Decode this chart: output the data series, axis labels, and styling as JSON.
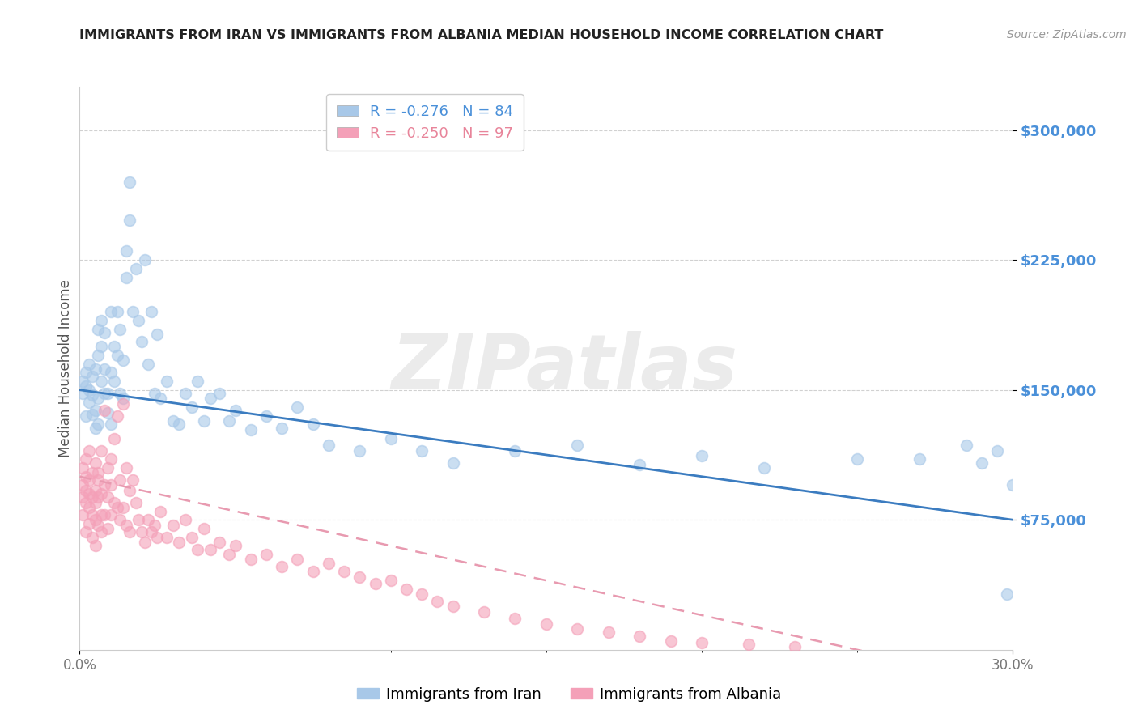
{
  "title": "IMMIGRANTS FROM IRAN VS IMMIGRANTS FROM ALBANIA MEDIAN HOUSEHOLD INCOME CORRELATION CHART",
  "source": "Source: ZipAtlas.com",
  "ylabel": "Median Household Income",
  "yticks": [
    75000,
    150000,
    225000,
    300000
  ],
  "ytick_labels": [
    "$75,000",
    "$150,000",
    "$225,000",
    "$300,000"
  ],
  "xlim": [
    0.0,
    0.3
  ],
  "ylim": [
    0,
    325000
  ],
  "watermark": "ZIPatlas",
  "legend_iran_R": "-0.276",
  "legend_iran_N": "84",
  "legend_albania_R": "-0.250",
  "legend_albania_N": "97",
  "iran_color": "#A8C8E8",
  "albania_color": "#F4A0B8",
  "iran_line_color": "#3B7CC0",
  "albania_line_color": "#E89AB0",
  "background_color": "#FFFFFF",
  "iran_x": [
    0.001,
    0.001,
    0.002,
    0.002,
    0.002,
    0.003,
    0.003,
    0.003,
    0.004,
    0.004,
    0.004,
    0.005,
    0.005,
    0.005,
    0.006,
    0.006,
    0.006,
    0.006,
    0.007,
    0.007,
    0.007,
    0.008,
    0.008,
    0.008,
    0.009,
    0.009,
    0.01,
    0.01,
    0.01,
    0.011,
    0.011,
    0.012,
    0.012,
    0.013,
    0.013,
    0.014,
    0.014,
    0.015,
    0.015,
    0.016,
    0.016,
    0.017,
    0.018,
    0.019,
    0.02,
    0.021,
    0.022,
    0.023,
    0.024,
    0.025,
    0.026,
    0.028,
    0.03,
    0.032,
    0.034,
    0.036,
    0.038,
    0.04,
    0.042,
    0.045,
    0.048,
    0.05,
    0.055,
    0.06,
    0.065,
    0.07,
    0.075,
    0.08,
    0.09,
    0.1,
    0.11,
    0.12,
    0.14,
    0.16,
    0.18,
    0.2,
    0.22,
    0.25,
    0.27,
    0.285,
    0.29,
    0.295,
    0.298,
    0.3
  ],
  "iran_y": [
    148000,
    155000,
    152000,
    160000,
    135000,
    143000,
    165000,
    150000,
    158000,
    147000,
    136000,
    162000,
    138000,
    128000,
    170000,
    145000,
    185000,
    130000,
    175000,
    190000,
    155000,
    183000,
    148000,
    162000,
    148000,
    137000,
    195000,
    160000,
    130000,
    175000,
    155000,
    195000,
    170000,
    185000,
    148000,
    167000,
    145000,
    230000,
    215000,
    248000,
    270000,
    195000,
    220000,
    190000,
    178000,
    225000,
    165000,
    195000,
    148000,
    182000,
    145000,
    155000,
    132000,
    130000,
    148000,
    140000,
    155000,
    132000,
    145000,
    148000,
    132000,
    138000,
    127000,
    135000,
    128000,
    140000,
    130000,
    118000,
    115000,
    122000,
    115000,
    108000,
    115000,
    118000,
    107000,
    112000,
    105000,
    110000,
    110000,
    118000,
    108000,
    115000,
    32000,
    95000
  ],
  "albania_x": [
    0.001,
    0.001,
    0.001,
    0.001,
    0.002,
    0.002,
    0.002,
    0.002,
    0.002,
    0.003,
    0.003,
    0.003,
    0.003,
    0.003,
    0.004,
    0.004,
    0.004,
    0.004,
    0.005,
    0.005,
    0.005,
    0.005,
    0.005,
    0.006,
    0.006,
    0.006,
    0.006,
    0.007,
    0.007,
    0.007,
    0.007,
    0.008,
    0.008,
    0.008,
    0.009,
    0.009,
    0.009,
    0.01,
    0.01,
    0.01,
    0.011,
    0.011,
    0.012,
    0.012,
    0.013,
    0.013,
    0.014,
    0.014,
    0.015,
    0.015,
    0.016,
    0.016,
    0.017,
    0.018,
    0.019,
    0.02,
    0.021,
    0.022,
    0.023,
    0.024,
    0.025,
    0.026,
    0.028,
    0.03,
    0.032,
    0.034,
    0.036,
    0.038,
    0.04,
    0.042,
    0.045,
    0.048,
    0.05,
    0.055,
    0.06,
    0.065,
    0.07,
    0.075,
    0.08,
    0.085,
    0.09,
    0.095,
    0.1,
    0.105,
    0.11,
    0.115,
    0.12,
    0.13,
    0.14,
    0.15,
    0.16,
    0.17,
    0.18,
    0.19,
    0.2,
    0.215,
    0.23
  ],
  "albania_y": [
    95000,
    88000,
    105000,
    78000,
    92000,
    110000,
    85000,
    100000,
    68000,
    98000,
    90000,
    115000,
    82000,
    73000,
    88000,
    102000,
    78000,
    65000,
    108000,
    85000,
    92000,
    75000,
    60000,
    98000,
    88000,
    102000,
    72000,
    115000,
    90000,
    78000,
    68000,
    138000,
    95000,
    78000,
    105000,
    88000,
    70000,
    95000,
    110000,
    78000,
    122000,
    85000,
    135000,
    82000,
    98000,
    75000,
    142000,
    82000,
    105000,
    72000,
    92000,
    68000,
    98000,
    85000,
    75000,
    68000,
    62000,
    75000,
    68000,
    72000,
    65000,
    80000,
    65000,
    72000,
    62000,
    75000,
    65000,
    58000,
    70000,
    58000,
    62000,
    55000,
    60000,
    52000,
    55000,
    48000,
    52000,
    45000,
    50000,
    45000,
    42000,
    38000,
    40000,
    35000,
    32000,
    28000,
    25000,
    22000,
    18000,
    15000,
    12000,
    10000,
    8000,
    5000,
    4000,
    3000,
    2000
  ]
}
